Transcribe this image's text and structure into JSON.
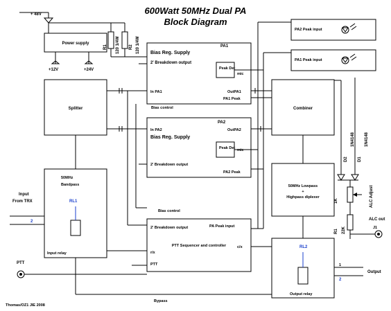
{
  "title": {
    "line1": "600Watt 50MHz Dual PA",
    "line2": "Block Diagram"
  },
  "power": {
    "input": "+ 48V",
    "supply": "Power supply",
    "out12": "+12V",
    "out24": "+24V",
    "r1": "R1",
    "r1v": "120 1/4W",
    "r2": "R2",
    "r2v": "120 1/4W"
  },
  "pa1": {
    "name": "PA1",
    "bias": "Bias Reg. Supply",
    "breakdown": "2' Breakdown output",
    "peakdet": "Peak Det",
    "mic": "mic",
    "in": "In PA1",
    "out": "OutPA1",
    "peak": "PA1 Peak"
  },
  "pa2": {
    "name": "PA2",
    "bias": "Bias Reg. Supply",
    "breakdown": "2' Breakdown output",
    "peakdet": "Peak Det",
    "mic": "mic",
    "in": "In PA2",
    "out": "OutPA2",
    "peak": "PA2 Peak"
  },
  "indicators": {
    "pa2": "PA2 Peak input",
    "pa1": "PA1 Peak input"
  },
  "blocks": {
    "splitter": "Splitter",
    "combiner": "Combiner",
    "bias_control_1": "Bias control",
    "bias_control_2": "Bias control",
    "bandpass_l1": "50MHz",
    "bandpass_l2": "Bandpass",
    "lowpass_l1": "50MHz Lowpass",
    "lowpass_l2": "+",
    "lowpass_l3": "Highpass diplexer",
    "ptt_seq": "PTT Sequencer and controller",
    "ptt_breakdown": "2' Breakdown output",
    "pa_peak_input": "PA Peak input",
    "rx": "r/x",
    "ptt_in": "PTT",
    "ctx": "c/x",
    "output_relay": "Output relay",
    "input_relay": "Input relay",
    "rl1": "RL1",
    "rl2": "RL2"
  },
  "io": {
    "input": "Input",
    "from_trx": "From TRX",
    "ptt": "PTT",
    "output": "Output",
    "alc_out": "ALC out",
    "alc_adjust": "ALC Adjust",
    "bypass": "Bypass",
    "j1": "J1",
    "n1": "1",
    "n2": "2"
  },
  "components": {
    "d2": "D2",
    "d2v": "1N4148",
    "d1": "D1",
    "d1v": "1N4148",
    "r3": "1K",
    "r1": "R1",
    "r1v": "22K"
  },
  "credit": "Thomas/OZ1 JIE 2008"
}
